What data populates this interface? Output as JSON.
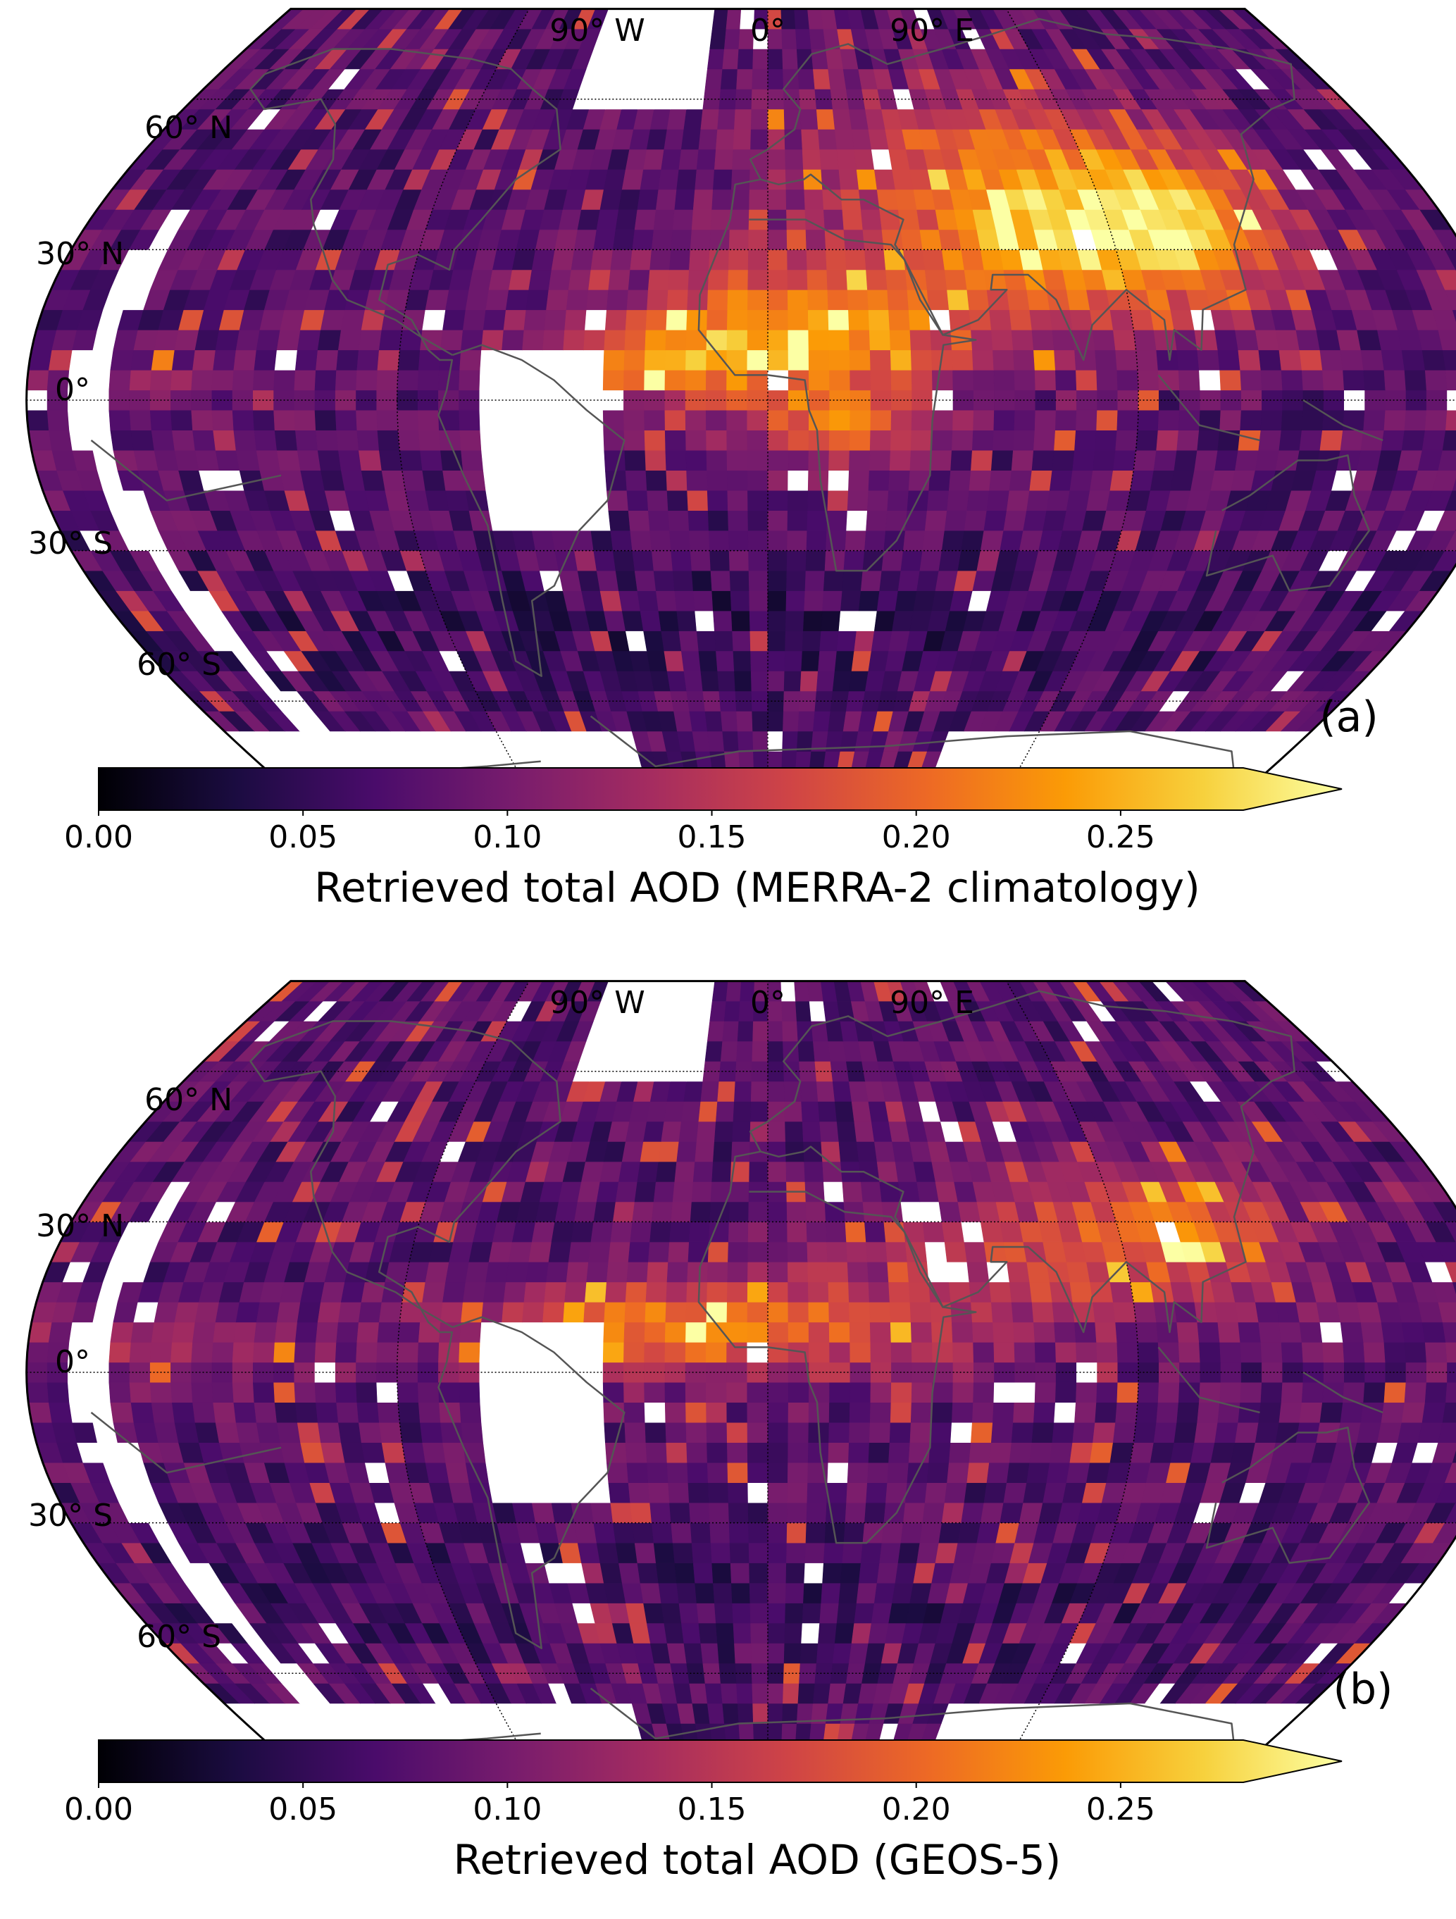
{
  "panels": [
    {
      "label": "(a)",
      "lon_labels": [
        "90° W",
        "0°",
        "90° E"
      ],
      "lat_labels": [
        "60° N",
        "30° N",
        "0°",
        "30° S",
        "60° S"
      ],
      "colorbar": {
        "ticks": [
          "0.00",
          "0.05",
          "0.10",
          "0.15",
          "0.20",
          "0.25"
        ],
        "label": "Retrieved total AOD (MERRA-2 climatology)"
      }
    },
    {
      "label": "(b)",
      "lon_labels": [
        "90° W",
        "0°",
        "90° E"
      ],
      "lat_labels": [
        "60° N",
        "30° N",
        "0°",
        "30° S",
        "60° S"
      ],
      "colorbar": {
        "ticks": [
          "0.00",
          "0.05",
          "0.10",
          "0.15",
          "0.20",
          "0.25"
        ],
        "label": "Retrieved total AOD (GEOS-5)"
      }
    }
  ],
  "colormap": {
    "name": "inferno",
    "stops": [
      "#000004",
      "#1b0c41",
      "#4a0c6b",
      "#781c6d",
      "#a52c60",
      "#cf4446",
      "#ed6925",
      "#fb9b06",
      "#f7d13d",
      "#fcffa4"
    ],
    "range": [
      0.0,
      0.28
    ],
    "extend": "max"
  },
  "colors": {
    "no_data": "#ffffff",
    "coastline": "#555555",
    "gridline": "#000000"
  }
}
